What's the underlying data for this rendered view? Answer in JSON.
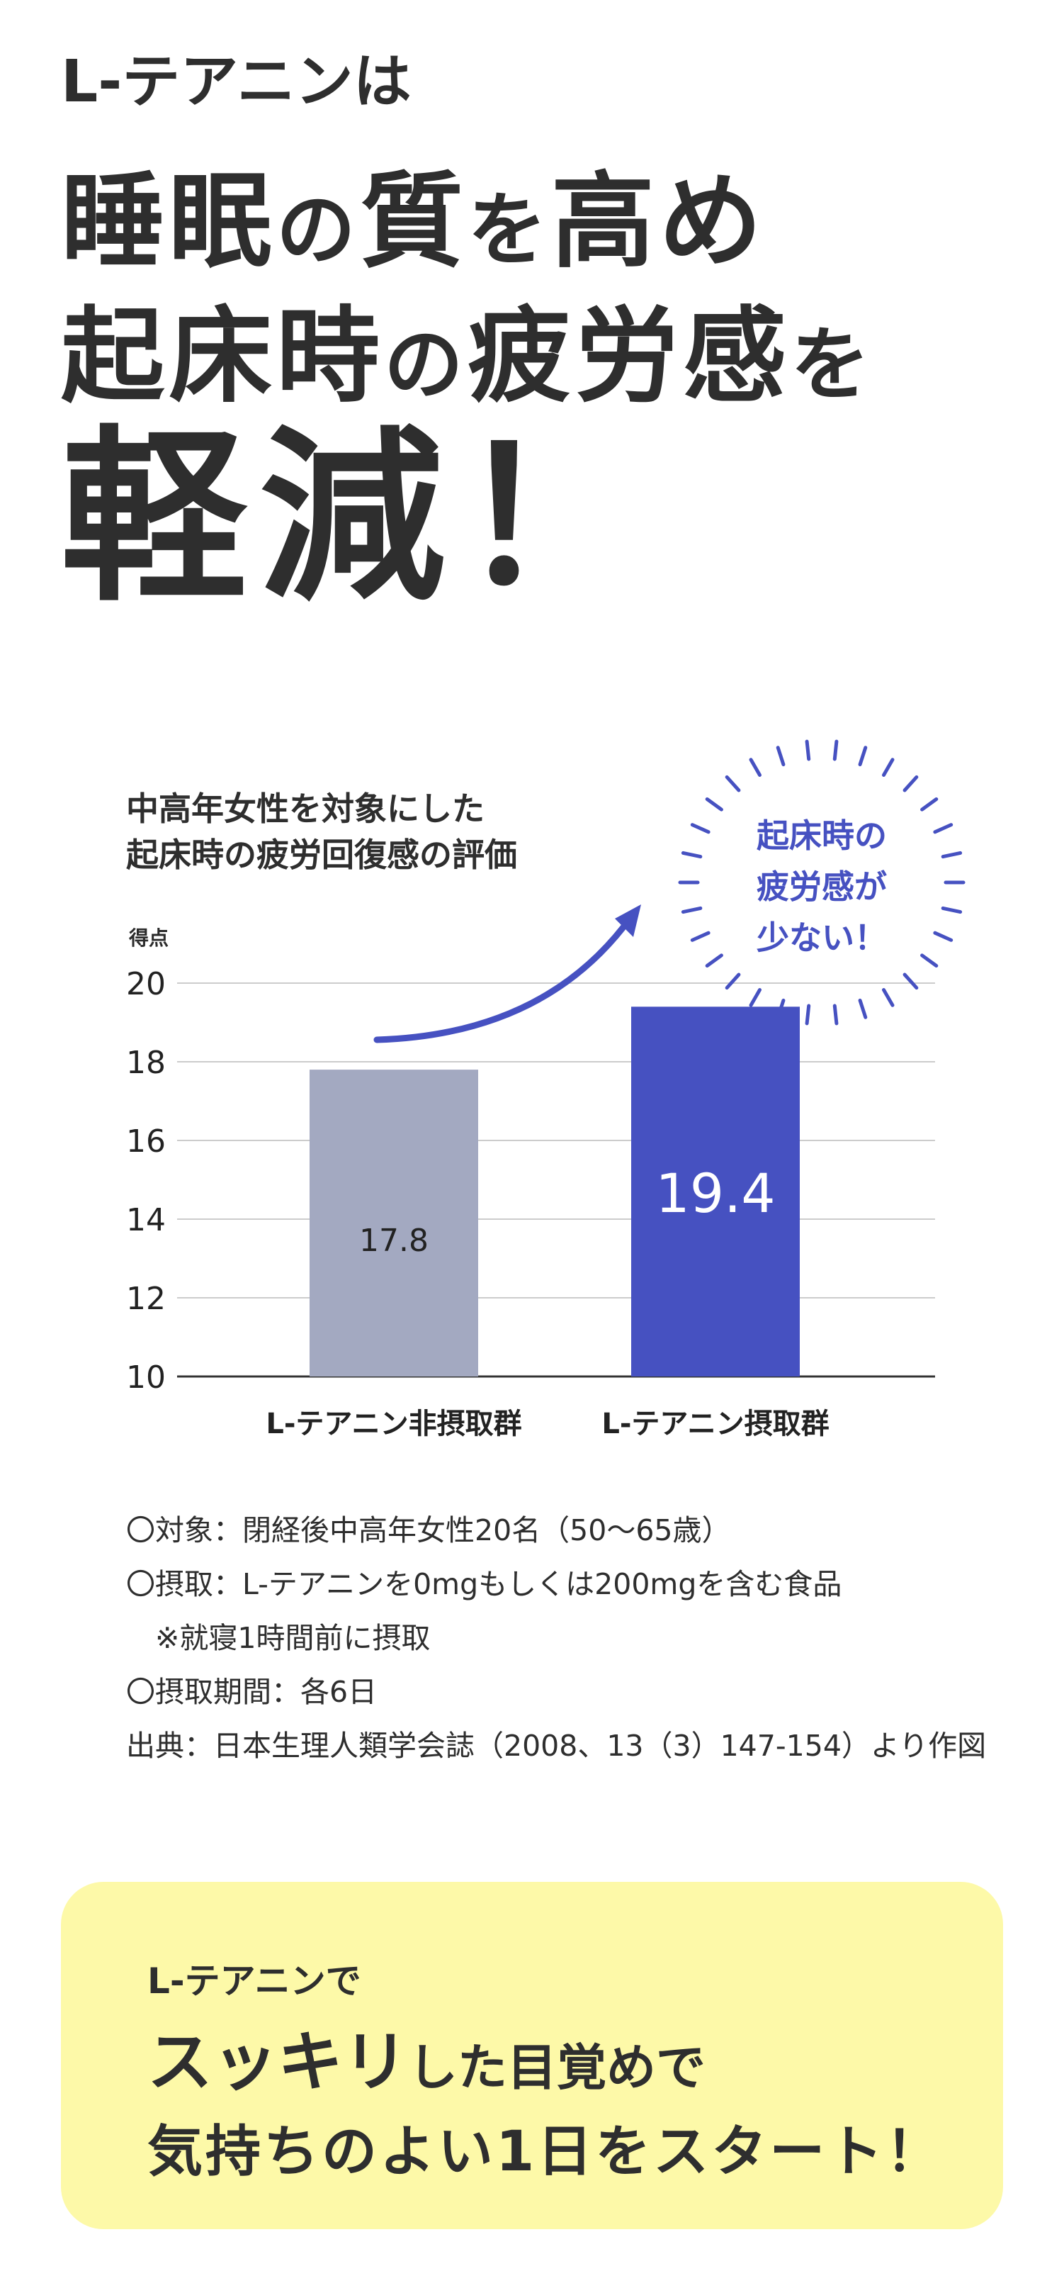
{
  "headline": {
    "line1": "L-テアニンは",
    "line2_big": "睡眠",
    "line2_small": "の",
    "line2_big2": "質",
    "line2_small2": "を",
    "line2_big3": "高め",
    "line3_big": "起床時",
    "line3_small": "の",
    "line3_big2": "疲労感",
    "line3_small2": "を",
    "line4": "軽減！"
  },
  "chart_data": {
    "type": "bar",
    "title_line1": "中高年女性を対象にした",
    "title_line2": "起床時の疲労回復感の評価",
    "ylabel": "得点",
    "ylim": [
      10,
      20
    ],
    "yticks": [
      "10",
      "12",
      "14",
      "16",
      "18",
      "20"
    ],
    "categories": [
      "L-テアニン非摂取群",
      "L-テアニン摂取群"
    ],
    "values": [
      17.8,
      19.4
    ],
    "value_labels": [
      "17.8",
      "19.4"
    ],
    "bar_colors": [
      "#a3a9c1",
      "#4651c1"
    ],
    "annotation": [
      "起床時の",
      "疲労感が",
      "少ない！"
    ],
    "grid": true
  },
  "notes": [
    "〇対象：閉経後中高年女性20名（50〜65歳）",
    "〇摂取：L-テアニンを0mgもしくは200mgを含む食品",
    "　※就寝1時間前に摂取",
    "〇摂取期間：各6日",
    "出典：日本生理人類学会誌（2008、13（3）147-154）より作図"
  ],
  "callout": {
    "line1": "L-テアニンで",
    "line2_big": "スッキリ",
    "line2_small": "した目覚めで",
    "line3": "気持ちのよい1日をスタート！"
  }
}
